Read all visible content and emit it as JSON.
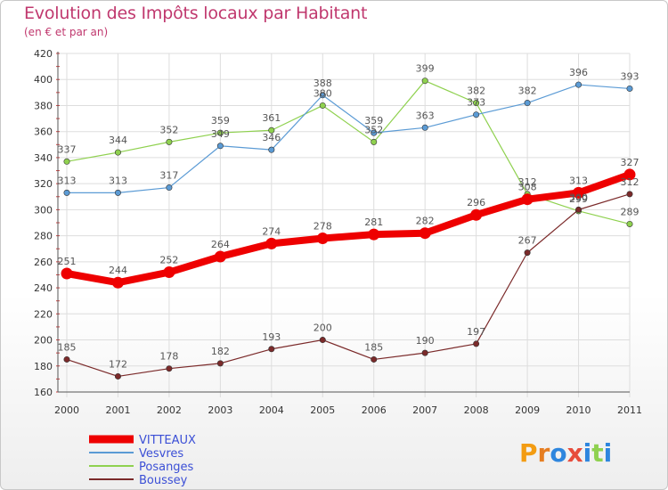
{
  "header": {
    "title": "Evolution des Impôts locaux par Habitant",
    "subtitle": "(en € et par an)"
  },
  "logo": {
    "text": "Proxiti"
  },
  "chart_data": {
    "type": "line",
    "title": "Evolution des Impôts locaux par Habitant",
    "subtitle": "(en € et par an)",
    "xlabel": "",
    "ylabel": "",
    "x": [
      2000,
      2001,
      2002,
      2003,
      2004,
      2005,
      2006,
      2007,
      2008,
      2009,
      2010,
      2011
    ],
    "ylim": [
      160,
      420
    ],
    "yticks": [
      160,
      180,
      200,
      220,
      240,
      260,
      280,
      300,
      320,
      340,
      360,
      380,
      400,
      420
    ],
    "grid": true,
    "legend_position": "bottom-left",
    "series": [
      {
        "name": "Posanges",
        "color": "#8fd14f",
        "values": [
          337,
          344,
          352,
          359,
          361,
          380,
          352,
          399,
          382,
          312,
          299,
          289
        ]
      },
      {
        "name": "Vesvres",
        "color": "#5b9bd5",
        "values": [
          313,
          313,
          317,
          349,
          346,
          388,
          359,
          363,
          373,
          382,
          396,
          393
        ]
      },
      {
        "name": "Boussey",
        "color": "#7b2a2a",
        "values": [
          185,
          172,
          178,
          182,
          193,
          200,
          185,
          190,
          197,
          267,
          300,
          312
        ]
      },
      {
        "name": "VITTEAUX",
        "color": "#ee0000",
        "values": [
          251,
          244,
          252,
          264,
          274,
          278,
          281,
          282,
          296,
          308,
          313,
          327
        ]
      }
    ],
    "legend_order": [
      "VITTEAUX",
      "Vesvres",
      "Posanges",
      "Boussey"
    ]
  }
}
